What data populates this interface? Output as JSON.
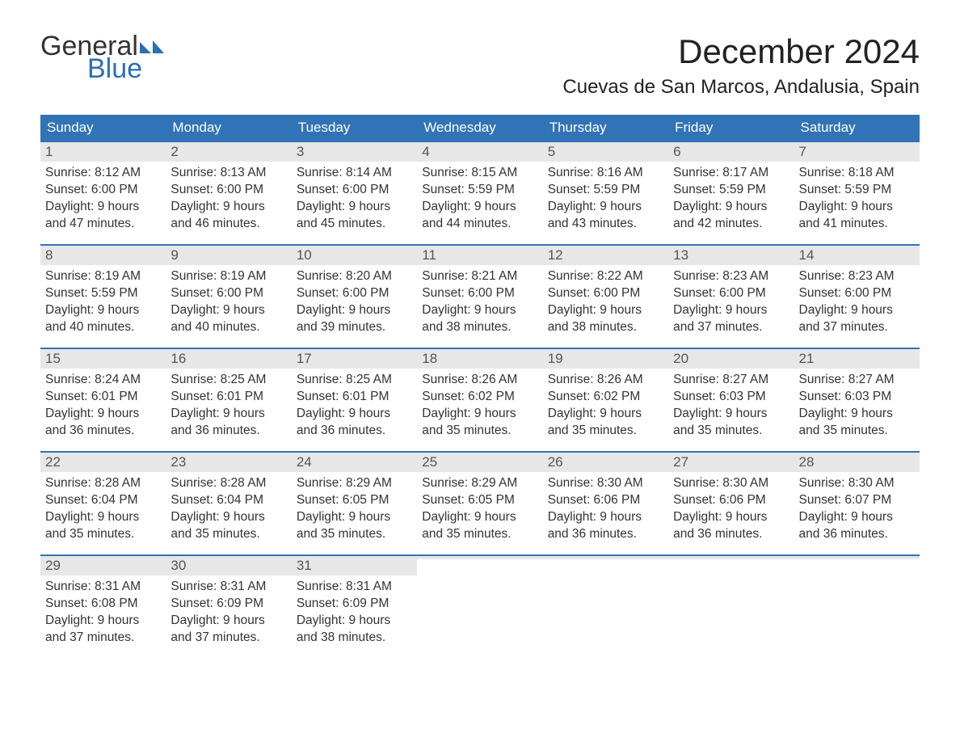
{
  "brand": {
    "general": "General",
    "blue": "Blue"
  },
  "title": "December 2024",
  "location": "Cuevas de San Marcos, Andalusia, Spain",
  "colors": {
    "header_bg": "#3173b7",
    "header_text": "#ffffff",
    "daynum_bg": "#e7e7e7",
    "week_border": "#3173b7",
    "brand_blue": "#2b6fb5",
    "text": "#333333",
    "background": "#ffffff"
  },
  "weekdays": [
    "Sunday",
    "Monday",
    "Tuesday",
    "Wednesday",
    "Thursday",
    "Friday",
    "Saturday"
  ],
  "weeks": [
    [
      {
        "n": "1",
        "sunrise": "Sunrise: 8:12 AM",
        "sunset": "Sunset: 6:00 PM",
        "daylight1": "Daylight: 9 hours",
        "daylight2": "and 47 minutes."
      },
      {
        "n": "2",
        "sunrise": "Sunrise: 8:13 AM",
        "sunset": "Sunset: 6:00 PM",
        "daylight1": "Daylight: 9 hours",
        "daylight2": "and 46 minutes."
      },
      {
        "n": "3",
        "sunrise": "Sunrise: 8:14 AM",
        "sunset": "Sunset: 6:00 PM",
        "daylight1": "Daylight: 9 hours",
        "daylight2": "and 45 minutes."
      },
      {
        "n": "4",
        "sunrise": "Sunrise: 8:15 AM",
        "sunset": "Sunset: 5:59 PM",
        "daylight1": "Daylight: 9 hours",
        "daylight2": "and 44 minutes."
      },
      {
        "n": "5",
        "sunrise": "Sunrise: 8:16 AM",
        "sunset": "Sunset: 5:59 PM",
        "daylight1": "Daylight: 9 hours",
        "daylight2": "and 43 minutes."
      },
      {
        "n": "6",
        "sunrise": "Sunrise: 8:17 AM",
        "sunset": "Sunset: 5:59 PM",
        "daylight1": "Daylight: 9 hours",
        "daylight2": "and 42 minutes."
      },
      {
        "n": "7",
        "sunrise": "Sunrise: 8:18 AM",
        "sunset": "Sunset: 5:59 PM",
        "daylight1": "Daylight: 9 hours",
        "daylight2": "and 41 minutes."
      }
    ],
    [
      {
        "n": "8",
        "sunrise": "Sunrise: 8:19 AM",
        "sunset": "Sunset: 5:59 PM",
        "daylight1": "Daylight: 9 hours",
        "daylight2": "and 40 minutes."
      },
      {
        "n": "9",
        "sunrise": "Sunrise: 8:19 AM",
        "sunset": "Sunset: 6:00 PM",
        "daylight1": "Daylight: 9 hours",
        "daylight2": "and 40 minutes."
      },
      {
        "n": "10",
        "sunrise": "Sunrise: 8:20 AM",
        "sunset": "Sunset: 6:00 PM",
        "daylight1": "Daylight: 9 hours",
        "daylight2": "and 39 minutes."
      },
      {
        "n": "11",
        "sunrise": "Sunrise: 8:21 AM",
        "sunset": "Sunset: 6:00 PM",
        "daylight1": "Daylight: 9 hours",
        "daylight2": "and 38 minutes."
      },
      {
        "n": "12",
        "sunrise": "Sunrise: 8:22 AM",
        "sunset": "Sunset: 6:00 PM",
        "daylight1": "Daylight: 9 hours",
        "daylight2": "and 38 minutes."
      },
      {
        "n": "13",
        "sunrise": "Sunrise: 8:23 AM",
        "sunset": "Sunset: 6:00 PM",
        "daylight1": "Daylight: 9 hours",
        "daylight2": "and 37 minutes."
      },
      {
        "n": "14",
        "sunrise": "Sunrise: 8:23 AM",
        "sunset": "Sunset: 6:00 PM",
        "daylight1": "Daylight: 9 hours",
        "daylight2": "and 37 minutes."
      }
    ],
    [
      {
        "n": "15",
        "sunrise": "Sunrise: 8:24 AM",
        "sunset": "Sunset: 6:01 PM",
        "daylight1": "Daylight: 9 hours",
        "daylight2": "and 36 minutes."
      },
      {
        "n": "16",
        "sunrise": "Sunrise: 8:25 AM",
        "sunset": "Sunset: 6:01 PM",
        "daylight1": "Daylight: 9 hours",
        "daylight2": "and 36 minutes."
      },
      {
        "n": "17",
        "sunrise": "Sunrise: 8:25 AM",
        "sunset": "Sunset: 6:01 PM",
        "daylight1": "Daylight: 9 hours",
        "daylight2": "and 36 minutes."
      },
      {
        "n": "18",
        "sunrise": "Sunrise: 8:26 AM",
        "sunset": "Sunset: 6:02 PM",
        "daylight1": "Daylight: 9 hours",
        "daylight2": "and 35 minutes."
      },
      {
        "n": "19",
        "sunrise": "Sunrise: 8:26 AM",
        "sunset": "Sunset: 6:02 PM",
        "daylight1": "Daylight: 9 hours",
        "daylight2": "and 35 minutes."
      },
      {
        "n": "20",
        "sunrise": "Sunrise: 8:27 AM",
        "sunset": "Sunset: 6:03 PM",
        "daylight1": "Daylight: 9 hours",
        "daylight2": "and 35 minutes."
      },
      {
        "n": "21",
        "sunrise": "Sunrise: 8:27 AM",
        "sunset": "Sunset: 6:03 PM",
        "daylight1": "Daylight: 9 hours",
        "daylight2": "and 35 minutes."
      }
    ],
    [
      {
        "n": "22",
        "sunrise": "Sunrise: 8:28 AM",
        "sunset": "Sunset: 6:04 PM",
        "daylight1": "Daylight: 9 hours",
        "daylight2": "and 35 minutes."
      },
      {
        "n": "23",
        "sunrise": "Sunrise: 8:28 AM",
        "sunset": "Sunset: 6:04 PM",
        "daylight1": "Daylight: 9 hours",
        "daylight2": "and 35 minutes."
      },
      {
        "n": "24",
        "sunrise": "Sunrise: 8:29 AM",
        "sunset": "Sunset: 6:05 PM",
        "daylight1": "Daylight: 9 hours",
        "daylight2": "and 35 minutes."
      },
      {
        "n": "25",
        "sunrise": "Sunrise: 8:29 AM",
        "sunset": "Sunset: 6:05 PM",
        "daylight1": "Daylight: 9 hours",
        "daylight2": "and 35 minutes."
      },
      {
        "n": "26",
        "sunrise": "Sunrise: 8:30 AM",
        "sunset": "Sunset: 6:06 PM",
        "daylight1": "Daylight: 9 hours",
        "daylight2": "and 36 minutes."
      },
      {
        "n": "27",
        "sunrise": "Sunrise: 8:30 AM",
        "sunset": "Sunset: 6:06 PM",
        "daylight1": "Daylight: 9 hours",
        "daylight2": "and 36 minutes."
      },
      {
        "n": "28",
        "sunrise": "Sunrise: 8:30 AM",
        "sunset": "Sunset: 6:07 PM",
        "daylight1": "Daylight: 9 hours",
        "daylight2": "and 36 minutes."
      }
    ],
    [
      {
        "n": "29",
        "sunrise": "Sunrise: 8:31 AM",
        "sunset": "Sunset: 6:08 PM",
        "daylight1": "Daylight: 9 hours",
        "daylight2": "and 37 minutes."
      },
      {
        "n": "30",
        "sunrise": "Sunrise: 8:31 AM",
        "sunset": "Sunset: 6:09 PM",
        "daylight1": "Daylight: 9 hours",
        "daylight2": "and 37 minutes."
      },
      {
        "n": "31",
        "sunrise": "Sunrise: 8:31 AM",
        "sunset": "Sunset: 6:09 PM",
        "daylight1": "Daylight: 9 hours",
        "daylight2": "and 38 minutes."
      },
      {
        "empty": true
      },
      {
        "empty": true
      },
      {
        "empty": true
      },
      {
        "empty": true
      }
    ]
  ]
}
